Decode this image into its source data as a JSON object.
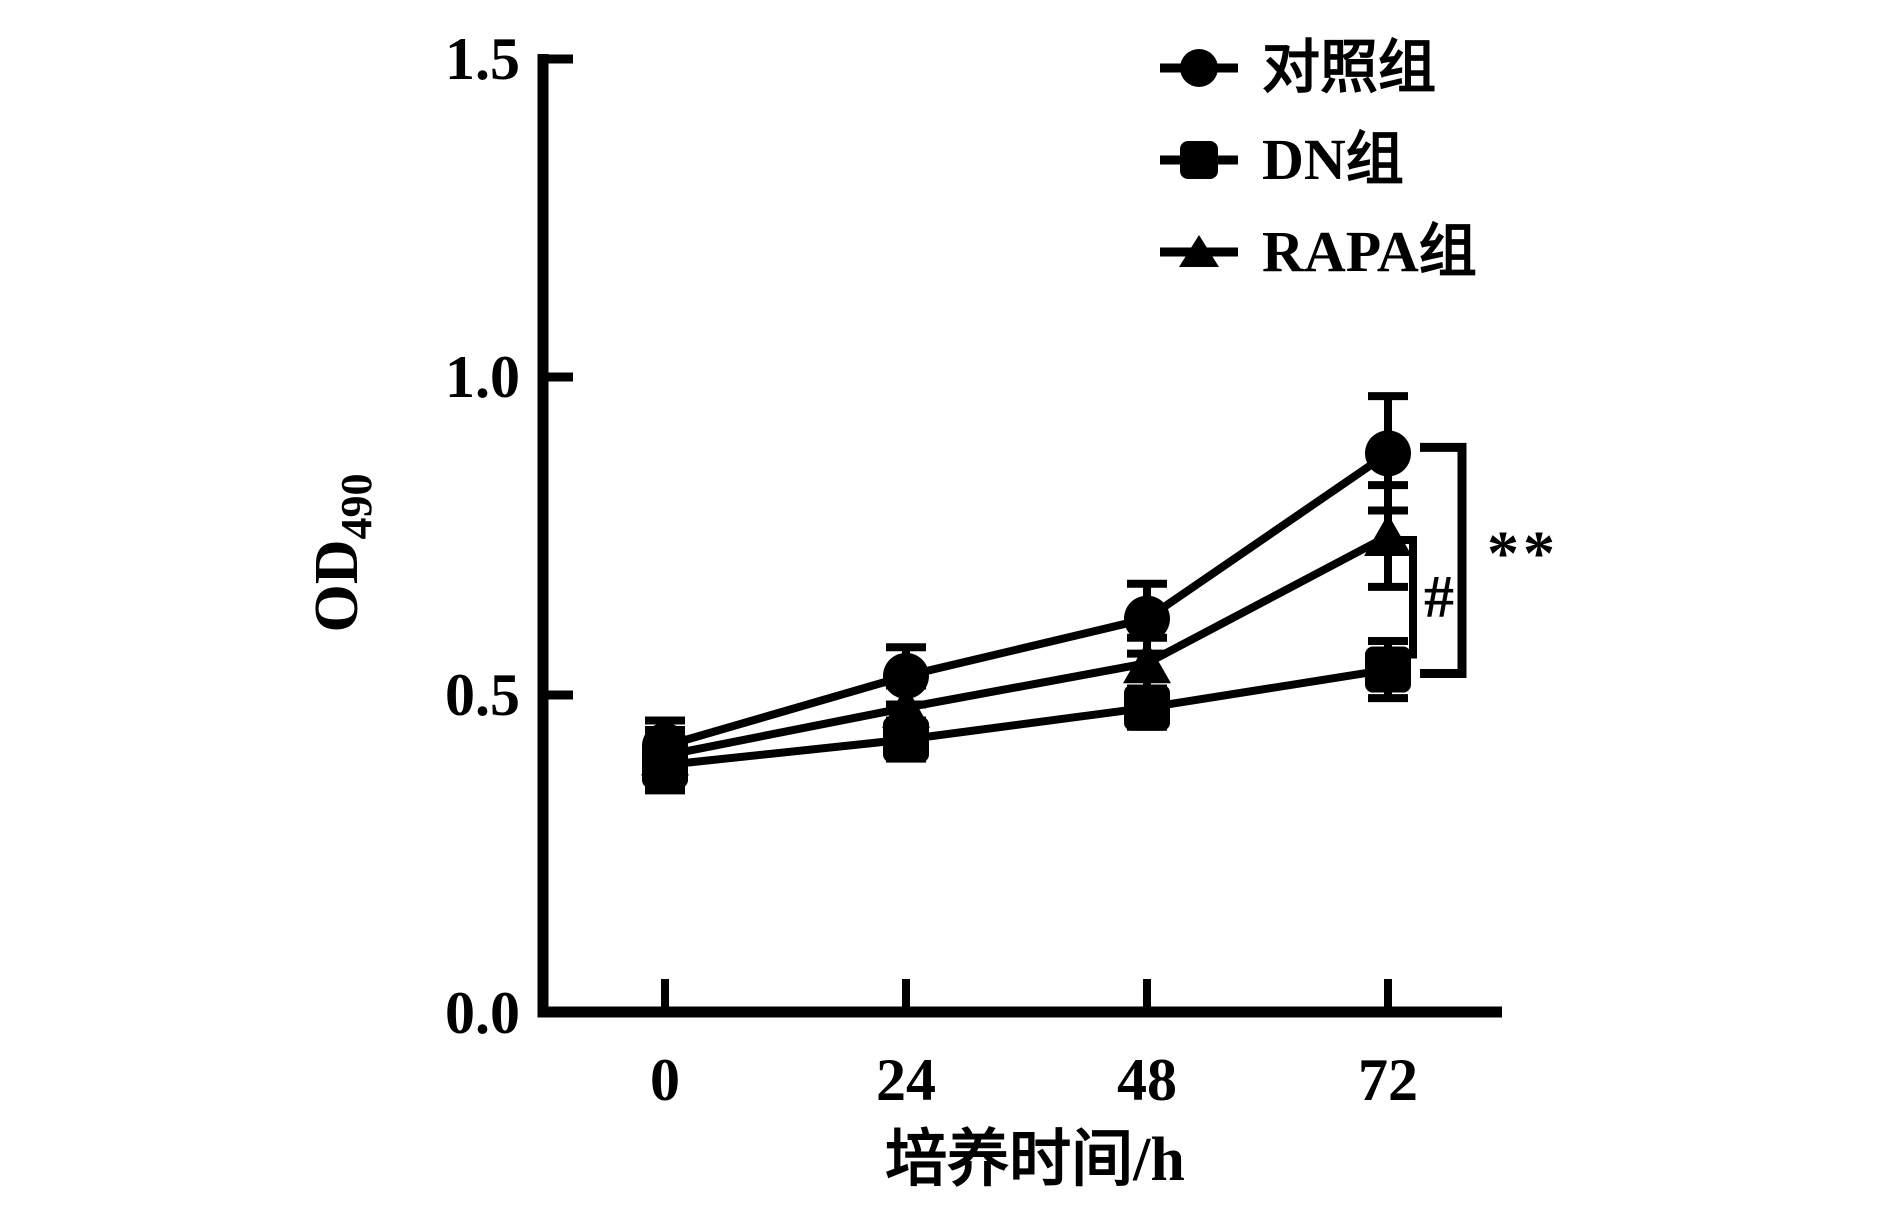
{
  "figure": {
    "background_color": "#ffffff",
    "ink_color": "#000000"
  },
  "chart_data": {
    "type": "line",
    "x": [
      0,
      24,
      48,
      72
    ],
    "x_tick_labels": [
      "0",
      "24",
      "48",
      "72"
    ],
    "xlabel": "培养时间/h",
    "ylabel_main": "OD",
    "ylabel_subscript": "490",
    "ylim": [
      0.0,
      1.5
    ],
    "y_ticks": [
      0.0,
      0.5,
      1.0,
      1.5
    ],
    "y_tick_labels": [
      "0.0",
      "0.5",
      "1.0",
      "1.5"
    ],
    "grid": false,
    "legend_position": "top-right-outside-plot",
    "series": [
      {
        "name": "对照组",
        "marker": "circle",
        "color": "#000000",
        "values": [
          0.42,
          0.53,
          0.62,
          0.88
        ],
        "errors": [
          0.04,
          0.045,
          0.055,
          0.09
        ]
      },
      {
        "name": "DN组",
        "marker": "square",
        "color": "#000000",
        "values": [
          0.39,
          0.43,
          0.48,
          0.54
        ],
        "errors": [
          0.04,
          0.03,
          0.03,
          0.045
        ]
      },
      {
        "name": "RAPA组",
        "marker": "triangle",
        "color": "#000000",
        "values": [
          0.405,
          0.48,
          0.55,
          0.75
        ],
        "errors": [
          0.04,
          0.035,
          0.04,
          0.08
        ]
      }
    ],
    "annotations": [
      {
        "text": "**",
        "type": "bracket",
        "at_x": 72,
        "from_series": "对照组",
        "to_series": "DN组"
      },
      {
        "text": "#",
        "type": "bracket",
        "at_x": 72,
        "from_series": "RAPA组",
        "to_series": "DN组"
      }
    ]
  }
}
